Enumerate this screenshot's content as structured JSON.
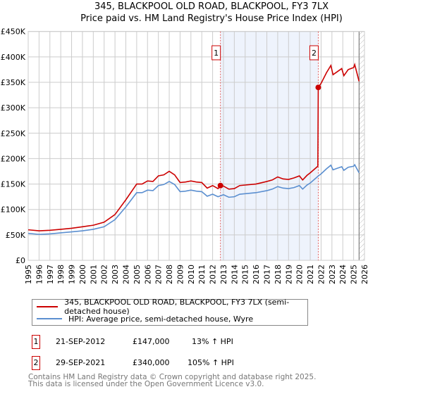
{
  "chart_data": {
    "type": "line",
    "title": "345, BLACKPOOL OLD ROAD, BLACKPOOL, FY3 7LX",
    "subtitle": "Price paid vs. HM Land Registry's House Price Index (HPI)",
    "xlim": [
      1995,
      2026
    ],
    "ylim": [
      0,
      450000
    ],
    "yticks": [
      0,
      50000,
      100000,
      150000,
      200000,
      250000,
      300000,
      350000,
      400000,
      450000
    ],
    "ytick_labels": [
      "£0",
      "£50K",
      "£100K",
      "£150K",
      "£200K",
      "£250K",
      "£300K",
      "£350K",
      "£400K",
      "£450K"
    ],
    "xticks": [
      "1995",
      "1996",
      "1997",
      "1998",
      "1999",
      "2000",
      "2001",
      "2002",
      "2003",
      "2004",
      "2005",
      "2006",
      "2007",
      "2008",
      "2009",
      "2010",
      "2011",
      "2012",
      "2013",
      "2014",
      "2015",
      "2016",
      "2017",
      "2018",
      "2019",
      "2020",
      "2021",
      "2022",
      "2023",
      "2024",
      "2025",
      "2026"
    ],
    "grid": true,
    "shaded_range": [
      2012.72,
      2021.74
    ],
    "hatched_from": 2025.5,
    "series": [
      {
        "name": "345, BLACKPOOL OLD ROAD, BLACKPOOL, FY3 7LX (semi-detached house)",
        "color": "#cc0000",
        "points": [
          [
            1995,
            60
          ],
          [
            1996,
            58
          ],
          [
            1997,
            59
          ],
          [
            1998,
            61
          ],
          [
            1999,
            63
          ],
          [
            2000,
            66
          ],
          [
            2001,
            69
          ],
          [
            2002,
            75
          ],
          [
            2003,
            90
          ],
          [
            2004,
            119
          ],
          [
            2005,
            150
          ],
          [
            2005.5,
            150
          ],
          [
            2006,
            156
          ],
          [
            2006.5,
            155
          ],
          [
            2007,
            166
          ],
          [
            2007.5,
            168
          ],
          [
            2008,
            175
          ],
          [
            2008.5,
            168
          ],
          [
            2009,
            153
          ],
          [
            2009.5,
            154
          ],
          [
            2010,
            156
          ],
          [
            2010.5,
            154
          ],
          [
            2011,
            153
          ],
          [
            2011.5,
            142
          ],
          [
            2012,
            147
          ],
          [
            2012.5,
            141
          ],
          [
            2012.72,
            147
          ],
          [
            2013,
            146
          ],
          [
            2013.5,
            140
          ],
          [
            2014,
            141
          ],
          [
            2014.5,
            147
          ],
          [
            2015,
            148
          ],
          [
            2016,
            150
          ],
          [
            2017,
            155
          ],
          [
            2017.5,
            158
          ],
          [
            2018,
            164
          ],
          [
            2018.5,
            160
          ],
          [
            2019,
            159
          ],
          [
            2019.5,
            162
          ],
          [
            2020,
            166
          ],
          [
            2020.3,
            158
          ],
          [
            2020.7,
            167
          ],
          [
            2021,
            172
          ],
          [
            2021.7,
            185
          ],
          [
            2021.74,
            340
          ],
          [
            2022,
            348
          ],
          [
            2022.5,
            369
          ],
          [
            2022.9,
            383
          ],
          [
            2023.1,
            365
          ],
          [
            2023.5,
            371
          ],
          [
            2023.9,
            377
          ],
          [
            2024.1,
            363
          ],
          [
            2024.5,
            375
          ],
          [
            2025,
            379
          ],
          [
            2025.1,
            385
          ],
          [
            2025.5,
            352
          ]
        ]
      },
      {
        "name": "HPI: Average price, semi-detached house, Wyre",
        "color": "#5b8fd0",
        "points": [
          [
            1995,
            53
          ],
          [
            1996,
            51
          ],
          [
            1997,
            52
          ],
          [
            1998,
            54
          ],
          [
            1999,
            56
          ],
          [
            2000,
            58
          ],
          [
            2001,
            61
          ],
          [
            2002,
            66
          ],
          [
            2003,
            80
          ],
          [
            2004,
            105
          ],
          [
            2005,
            133
          ],
          [
            2005.5,
            133
          ],
          [
            2006,
            138
          ],
          [
            2006.5,
            137
          ],
          [
            2007,
            147
          ],
          [
            2007.5,
            149
          ],
          [
            2008,
            155
          ],
          [
            2008.5,
            149
          ],
          [
            2009,
            135
          ],
          [
            2009.5,
            136
          ],
          [
            2010,
            138
          ],
          [
            2010.5,
            136
          ],
          [
            2011,
            135
          ],
          [
            2011.5,
            126
          ],
          [
            2012,
            130
          ],
          [
            2012.5,
            125
          ],
          [
            2013,
            129
          ],
          [
            2013.5,
            124
          ],
          [
            2014,
            125
          ],
          [
            2014.5,
            130
          ],
          [
            2015,
            131
          ],
          [
            2016,
            133
          ],
          [
            2017,
            137
          ],
          [
            2017.5,
            140
          ],
          [
            2018,
            145
          ],
          [
            2018.5,
            142
          ],
          [
            2019,
            141
          ],
          [
            2019.5,
            143
          ],
          [
            2020,
            147
          ],
          [
            2020.3,
            140
          ],
          [
            2020.7,
            148
          ],
          [
            2021,
            152
          ],
          [
            2021.75,
            166
          ],
          [
            2022,
            170
          ],
          [
            2022.5,
            180
          ],
          [
            2022.9,
            187
          ],
          [
            2023.1,
            178
          ],
          [
            2023.5,
            181
          ],
          [
            2023.9,
            184
          ],
          [
            2024.1,
            177
          ],
          [
            2024.5,
            183
          ],
          [
            2025,
            185
          ],
          [
            2025.1,
            188
          ],
          [
            2025.5,
            172
          ]
        ]
      }
    ],
    "value_units": "£K",
    "annotations": [
      {
        "label": "1",
        "x": 2012.72,
        "y": 147
      },
      {
        "label": "2",
        "x": 2021.74,
        "y": 340
      }
    ]
  },
  "legend": {
    "red": "345, BLACKPOOL OLD ROAD, BLACKPOOL, FY3 7LX (semi-detached house)",
    "blue": "HPI: Average price, semi-detached house, Wyre"
  },
  "sales": [
    {
      "num": "1",
      "date": "21-SEP-2012",
      "price": "£147,000",
      "hpi": "13% ↑ HPI"
    },
    {
      "num": "2",
      "date": "29-SEP-2021",
      "price": "£340,000",
      "hpi": "105% ↑ HPI"
    }
  ],
  "footer": {
    "line1": "Contains HM Land Registry data © Crown copyright and database right 2025.",
    "line2": "This data is licensed under the Open Government Licence v3.0."
  }
}
